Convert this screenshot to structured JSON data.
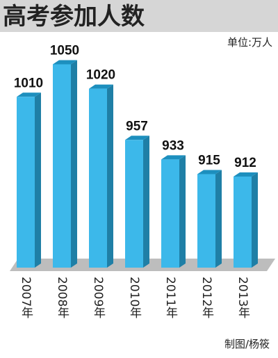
{
  "chart_data": {
    "type": "bar",
    "title": "高考参加人数",
    "subtitle": "单位:万人",
    "credit": "制图/杨筱",
    "categories": [
      "2007年",
      "2008年",
      "2009年",
      "2010年",
      "2011年",
      "2012年",
      "2013年"
    ],
    "values": [
      1010,
      1050,
      1020,
      957,
      933,
      915,
      912
    ],
    "color": "#3cb8ea",
    "ylim": [
      800,
      1100
    ]
  }
}
